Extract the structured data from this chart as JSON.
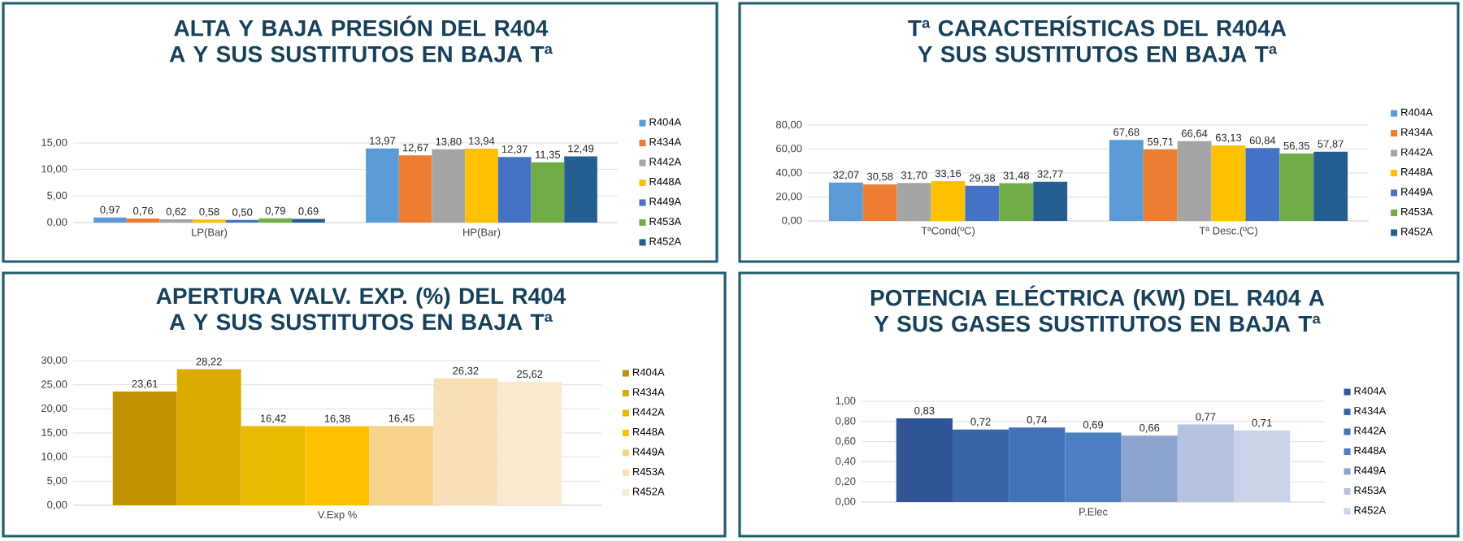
{
  "chart_data": [
    {
      "type": "bar",
      "title": "ALTA Y BAJA PRESIÓN DEL R404 A Y SUS SUSTITUTOS EN BAJA Tª",
      "categories": [
        "LP(Bar)",
        "HP(Bar)"
      ],
      "ylim": [
        0,
        15
      ],
      "yticks": [
        {
          "value": 0,
          "label": "0,00"
        },
        {
          "value": 5,
          "label": "5,00"
        },
        {
          "value": 10,
          "label": "10,00"
        },
        {
          "value": 15,
          "label": "15,00"
        }
      ],
      "grid": "y",
      "legend": "right",
      "series": [
        {
          "name": "R404A",
          "color": "#5b9bd5",
          "values": [
            0.97,
            13.97
          ],
          "value_labels": [
            "0,97",
            "13,97"
          ]
        },
        {
          "name": "R434A",
          "color": "#ed7d31",
          "values": [
            0.76,
            12.67
          ],
          "value_labels": [
            "0,76",
            "12,67"
          ]
        },
        {
          "name": "R442A",
          "color": "#a5a5a5",
          "values": [
            0.62,
            13.8
          ],
          "value_labels": [
            "0,62",
            "13,80"
          ]
        },
        {
          "name": "R448A",
          "color": "#ffc000",
          "values": [
            0.58,
            13.94
          ],
          "value_labels": [
            "0,58",
            "13,94"
          ]
        },
        {
          "name": "R449A",
          "color": "#4472c4",
          "values": [
            0.5,
            12.37
          ],
          "value_labels": [
            "0,50",
            "12,37"
          ]
        },
        {
          "name": "R453A",
          "color": "#70ad47",
          "values": [
            0.79,
            11.35
          ],
          "value_labels": [
            "0,79",
            "11,35"
          ]
        },
        {
          "name": "R452A",
          "color": "#255e91",
          "values": [
            0.69,
            12.49
          ],
          "value_labels": [
            "0,69",
            "12,49"
          ]
        }
      ]
    },
    {
      "type": "bar",
      "title": "Tª CARACTERÍSTICAS DEL R404A Y SUS SUSTITUTOS EN BAJA Tª",
      "categories": [
        "TªCond(ºC)",
        "Tª Desc.(ºC)"
      ],
      "ylim": [
        0,
        80
      ],
      "yticks": [
        {
          "value": 0,
          "label": "0,00"
        },
        {
          "value": 20,
          "label": "20,00"
        },
        {
          "value": 40,
          "label": "40,00"
        },
        {
          "value": 60,
          "label": "60,00"
        },
        {
          "value": 80,
          "label": "80,00"
        }
      ],
      "grid": "y",
      "legend": "right",
      "series": [
        {
          "name": "R404A",
          "color": "#5b9bd5",
          "values": [
            32.07,
            67.68
          ],
          "value_labels": [
            "32,07",
            "67,68"
          ]
        },
        {
          "name": "R434A",
          "color": "#ed7d31",
          "values": [
            30.58,
            59.71
          ],
          "value_labels": [
            "30,58",
            "59,71"
          ]
        },
        {
          "name": "R442A",
          "color": "#a5a5a5",
          "values": [
            31.7,
            66.64
          ],
          "value_labels": [
            "31,70",
            "66,64"
          ]
        },
        {
          "name": "R448A",
          "color": "#ffc000",
          "values": [
            33.16,
            63.13
          ],
          "value_labels": [
            "33,16",
            "63,13"
          ]
        },
        {
          "name": "R449A",
          "color": "#4472c4",
          "values": [
            29.38,
            60.84
          ],
          "value_labels": [
            "29,38",
            "60,84"
          ]
        },
        {
          "name": "R453A",
          "color": "#70ad47",
          "values": [
            31.48,
            56.35
          ],
          "value_labels": [
            "31,48",
            "56,35"
          ]
        },
        {
          "name": "R452A",
          "color": "#255e91",
          "values": [
            32.77,
            57.87
          ],
          "value_labels": [
            "32,77",
            "57,87"
          ]
        }
      ]
    },
    {
      "type": "bar",
      "title": "APERTURA VALV. EXP. (%) DEL R404 A Y SUS SUSTITUTOS EN BAJA Tª",
      "categories": [
        "V.Exp %"
      ],
      "ylim": [
        0,
        30
      ],
      "yticks": [
        {
          "value": 0,
          "label": "0,00"
        },
        {
          "value": 5,
          "label": "5,00"
        },
        {
          "value": 10,
          "label": "10,00"
        },
        {
          "value": 15,
          "label": "15,00"
        },
        {
          "value": 20,
          "label": "20,00"
        },
        {
          "value": 25,
          "label": "25,00"
        },
        {
          "value": 30,
          "label": "30,00"
        }
      ],
      "grid": "y",
      "legend": "right",
      "series": [
        {
          "name": "R404A",
          "color": "#bf9000",
          "values": [
            23.61
          ],
          "value_labels": [
            "23,61"
          ]
        },
        {
          "name": "R434A",
          "color": "#dcab00",
          "values": [
            28.22
          ],
          "value_labels": [
            "28,22"
          ]
        },
        {
          "name": "R442A",
          "color": "#e9b800",
          "values": [
            16.42
          ],
          "value_labels": [
            "16,42"
          ]
        },
        {
          "name": "R448A",
          "color": "#ffc000",
          "values": [
            16.38
          ],
          "value_labels": [
            "16,38"
          ]
        },
        {
          "name": "R449A",
          "color": "#f7d38c",
          "values": [
            16.45
          ],
          "value_labels": [
            "16,45"
          ]
        },
        {
          "name": "R453A",
          "color": "#f9dfb8",
          "values": [
            26.32
          ],
          "value_labels": [
            "26,32"
          ]
        },
        {
          "name": "R452A",
          "color": "#fbe9d2",
          "values": [
            25.62
          ],
          "value_labels": [
            "25,62"
          ]
        }
      ]
    },
    {
      "type": "bar",
      "title": "POTENCIA ELÉCTRICA (KW) DEL R404 A Y SUS GASES SUSTITUTOS EN BAJA Tª",
      "categories": [
        "P.Elec"
      ],
      "ylim": [
        0,
        1
      ],
      "yticks": [
        {
          "value": 0,
          "label": "0,00"
        },
        {
          "value": 0.2,
          "label": "0,20"
        },
        {
          "value": 0.4,
          "label": "0,40"
        },
        {
          "value": 0.6,
          "label": "0,60"
        },
        {
          "value": 0.8,
          "label": "0,80"
        },
        {
          "value": 1,
          "label": "1,00"
        }
      ],
      "grid": "y",
      "legend": "right",
      "series": [
        {
          "name": "R404A",
          "color": "#2f5597",
          "values": [
            0.83
          ],
          "value_labels": [
            "0,83"
          ]
        },
        {
          "name": "R434A",
          "color": "#3a64a8",
          "values": [
            0.72
          ],
          "value_labels": [
            "0,72"
          ]
        },
        {
          "name": "R442A",
          "color": "#4472b8",
          "values": [
            0.74
          ],
          "value_labels": [
            "0,74"
          ]
        },
        {
          "name": "R448A",
          "color": "#4d7ec2",
          "values": [
            0.69
          ],
          "value_labels": [
            "0,69"
          ]
        },
        {
          "name": "R449A",
          "color": "#8ea5d0",
          "values": [
            0.66
          ],
          "value_labels": [
            "0,66"
          ]
        },
        {
          "name": "R453A",
          "color": "#b4c4e0",
          "values": [
            0.77
          ],
          "value_labels": [
            "0,77"
          ]
        },
        {
          "name": "R452A",
          "color": "#c9d3e8",
          "values": [
            0.71
          ],
          "value_labels": [
            "0,71"
          ]
        }
      ]
    }
  ]
}
